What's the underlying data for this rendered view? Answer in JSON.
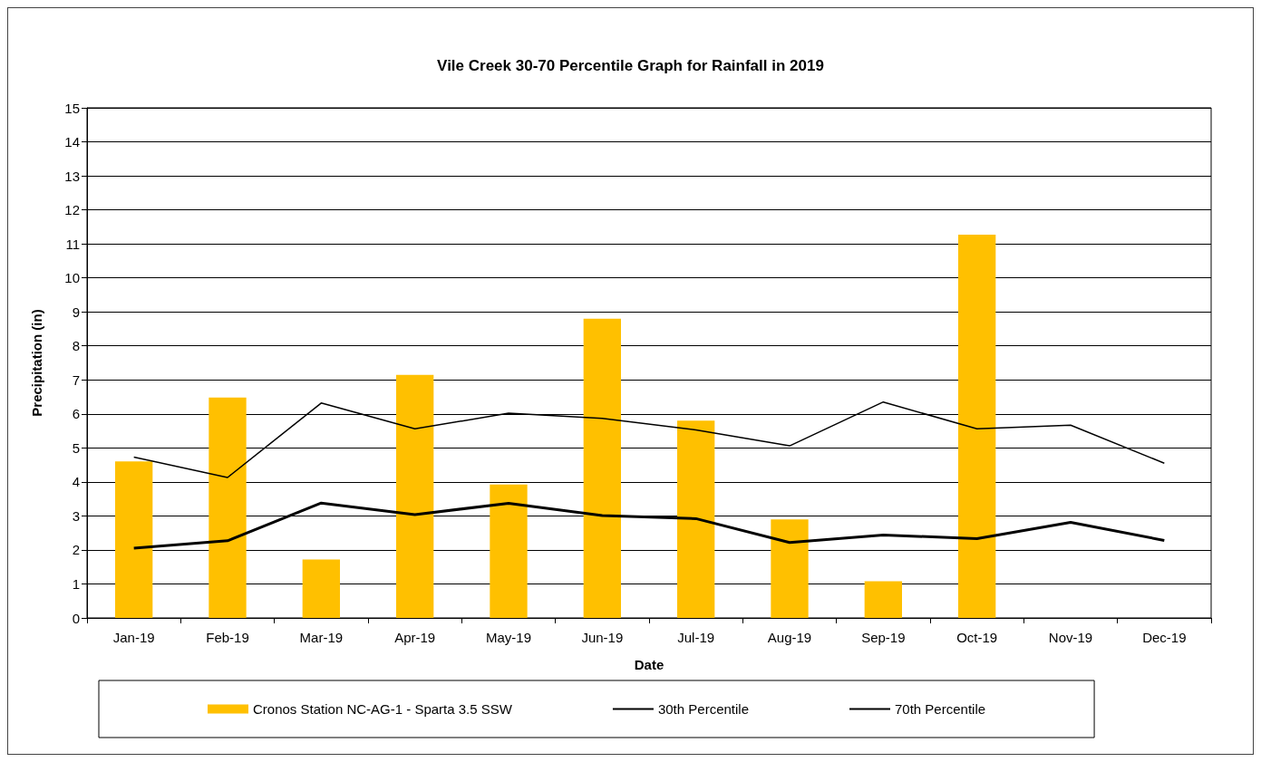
{
  "chart_data": {
    "type": "bar",
    "title": "Vile Creek 30-70 Percentile Graph for Rainfall in 2019",
    "xlabel": "Date",
    "ylabel": "Precipitation (in)",
    "categories": [
      "Jan-19",
      "Feb-19",
      "Mar-19",
      "Apr-19",
      "May-19",
      "Jun-19",
      "Jul-19",
      "Aug-19",
      "Sep-19",
      "Oct-19",
      "Nov-19",
      "Dec-19"
    ],
    "series": [
      {
        "name": "Cronos Station NC-AG-1 - Sparta 3.5 SSW",
        "type": "bar",
        "color": "#ffc000",
        "values": [
          4.6,
          6.48,
          1.72,
          7.15,
          3.92,
          8.8,
          5.8,
          2.9,
          1.08,
          11.27,
          null,
          null
        ]
      },
      {
        "name": "30th Percentile",
        "type": "line",
        "color": "#000000",
        "values": [
          2.05,
          2.27,
          3.38,
          3.04,
          3.37,
          3.01,
          2.92,
          2.22,
          2.44,
          2.33,
          2.81,
          2.28
        ]
      },
      {
        "name": "70th Percentile",
        "type": "line",
        "color": "#000000",
        "values": [
          4.73,
          4.13,
          6.32,
          5.56,
          6.02,
          5.87,
          5.53,
          5.06,
          6.35,
          5.56,
          5.67,
          4.55
        ]
      }
    ],
    "ylim": [
      0,
      15
    ],
    "yticks": [
      0,
      1,
      2,
      3,
      4,
      5,
      6,
      7,
      8,
      9,
      10,
      11,
      12,
      13,
      14,
      15
    ],
    "grid": "y",
    "legend": "bottom",
    "marker": "none",
    "line_style": "solid"
  }
}
